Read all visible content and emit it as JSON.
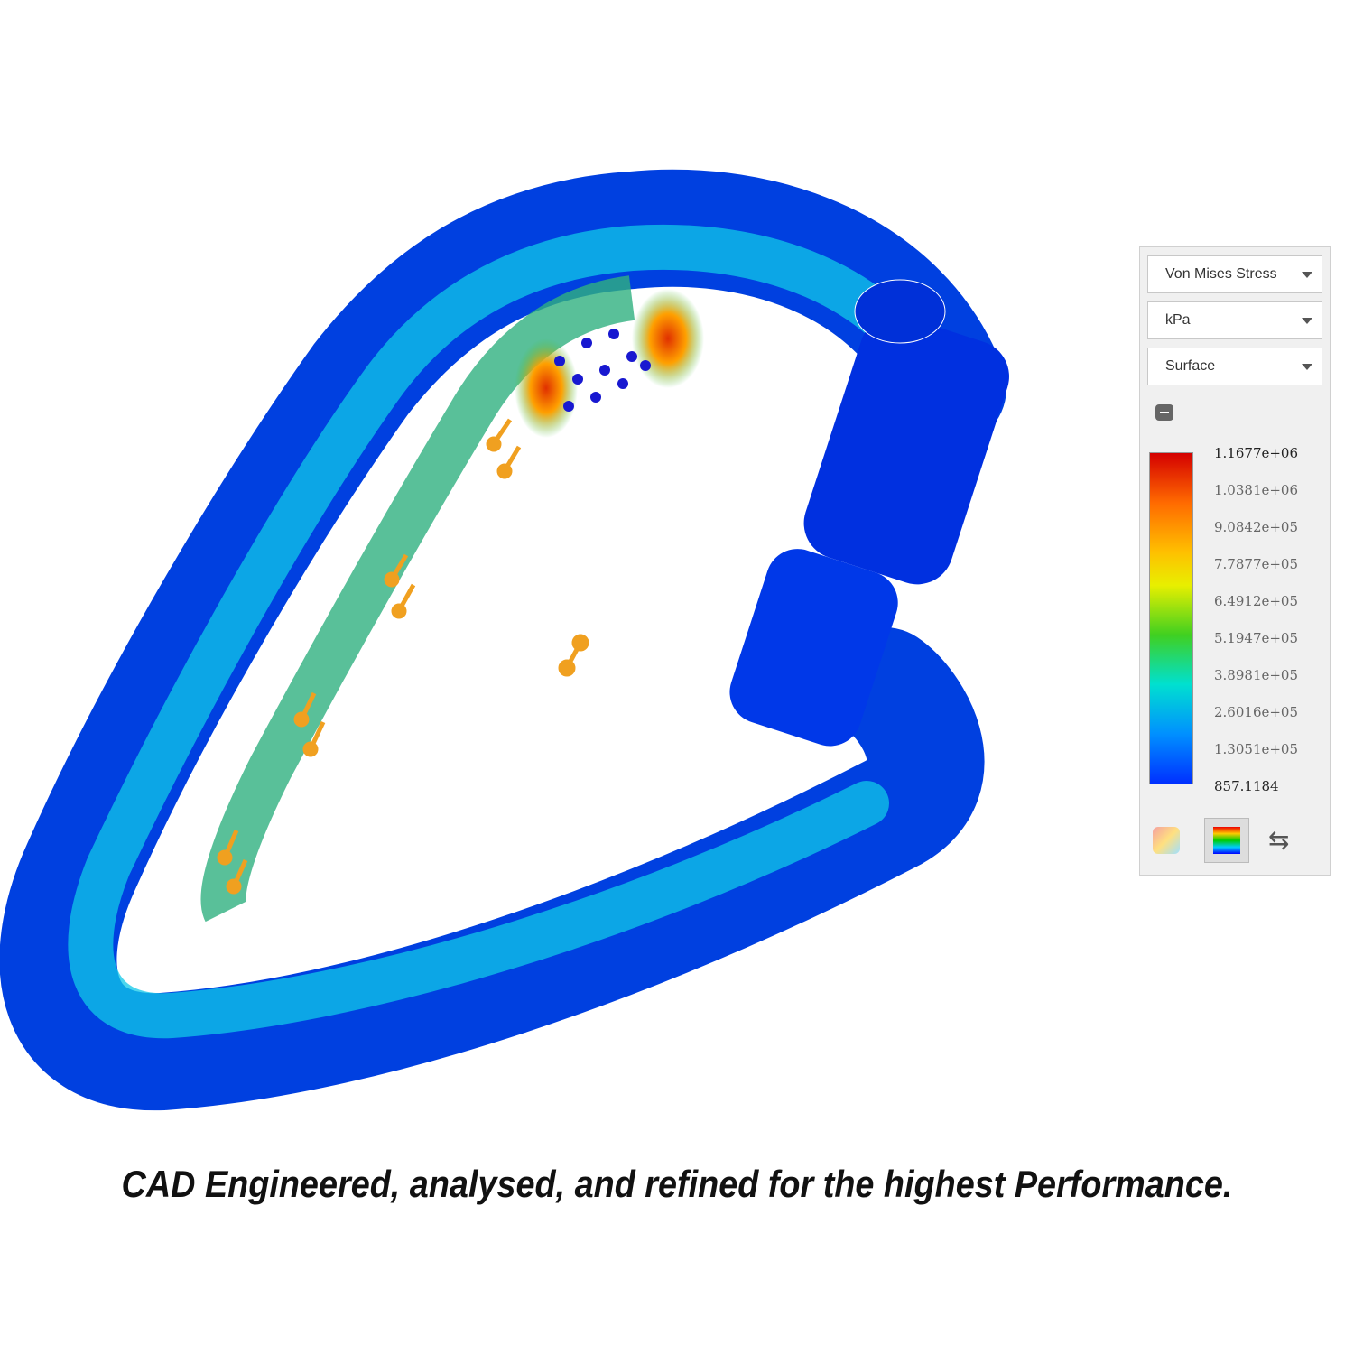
{
  "panel": {
    "dropdowns": [
      "Von Mises Stress",
      "kPa",
      "Surface"
    ],
    "legend": [
      "1.1677e+06",
      "1.0381e+06",
      "9.0842e+05",
      "7.7877e+05",
      "6.4912e+05",
      "5.1947e+05",
      "3.8981e+05",
      "2.6016e+05",
      "1.3051e+05",
      "857.1184"
    ]
  },
  "caption": "CAD Engineered, analysed, and refined for the highest Performance."
}
